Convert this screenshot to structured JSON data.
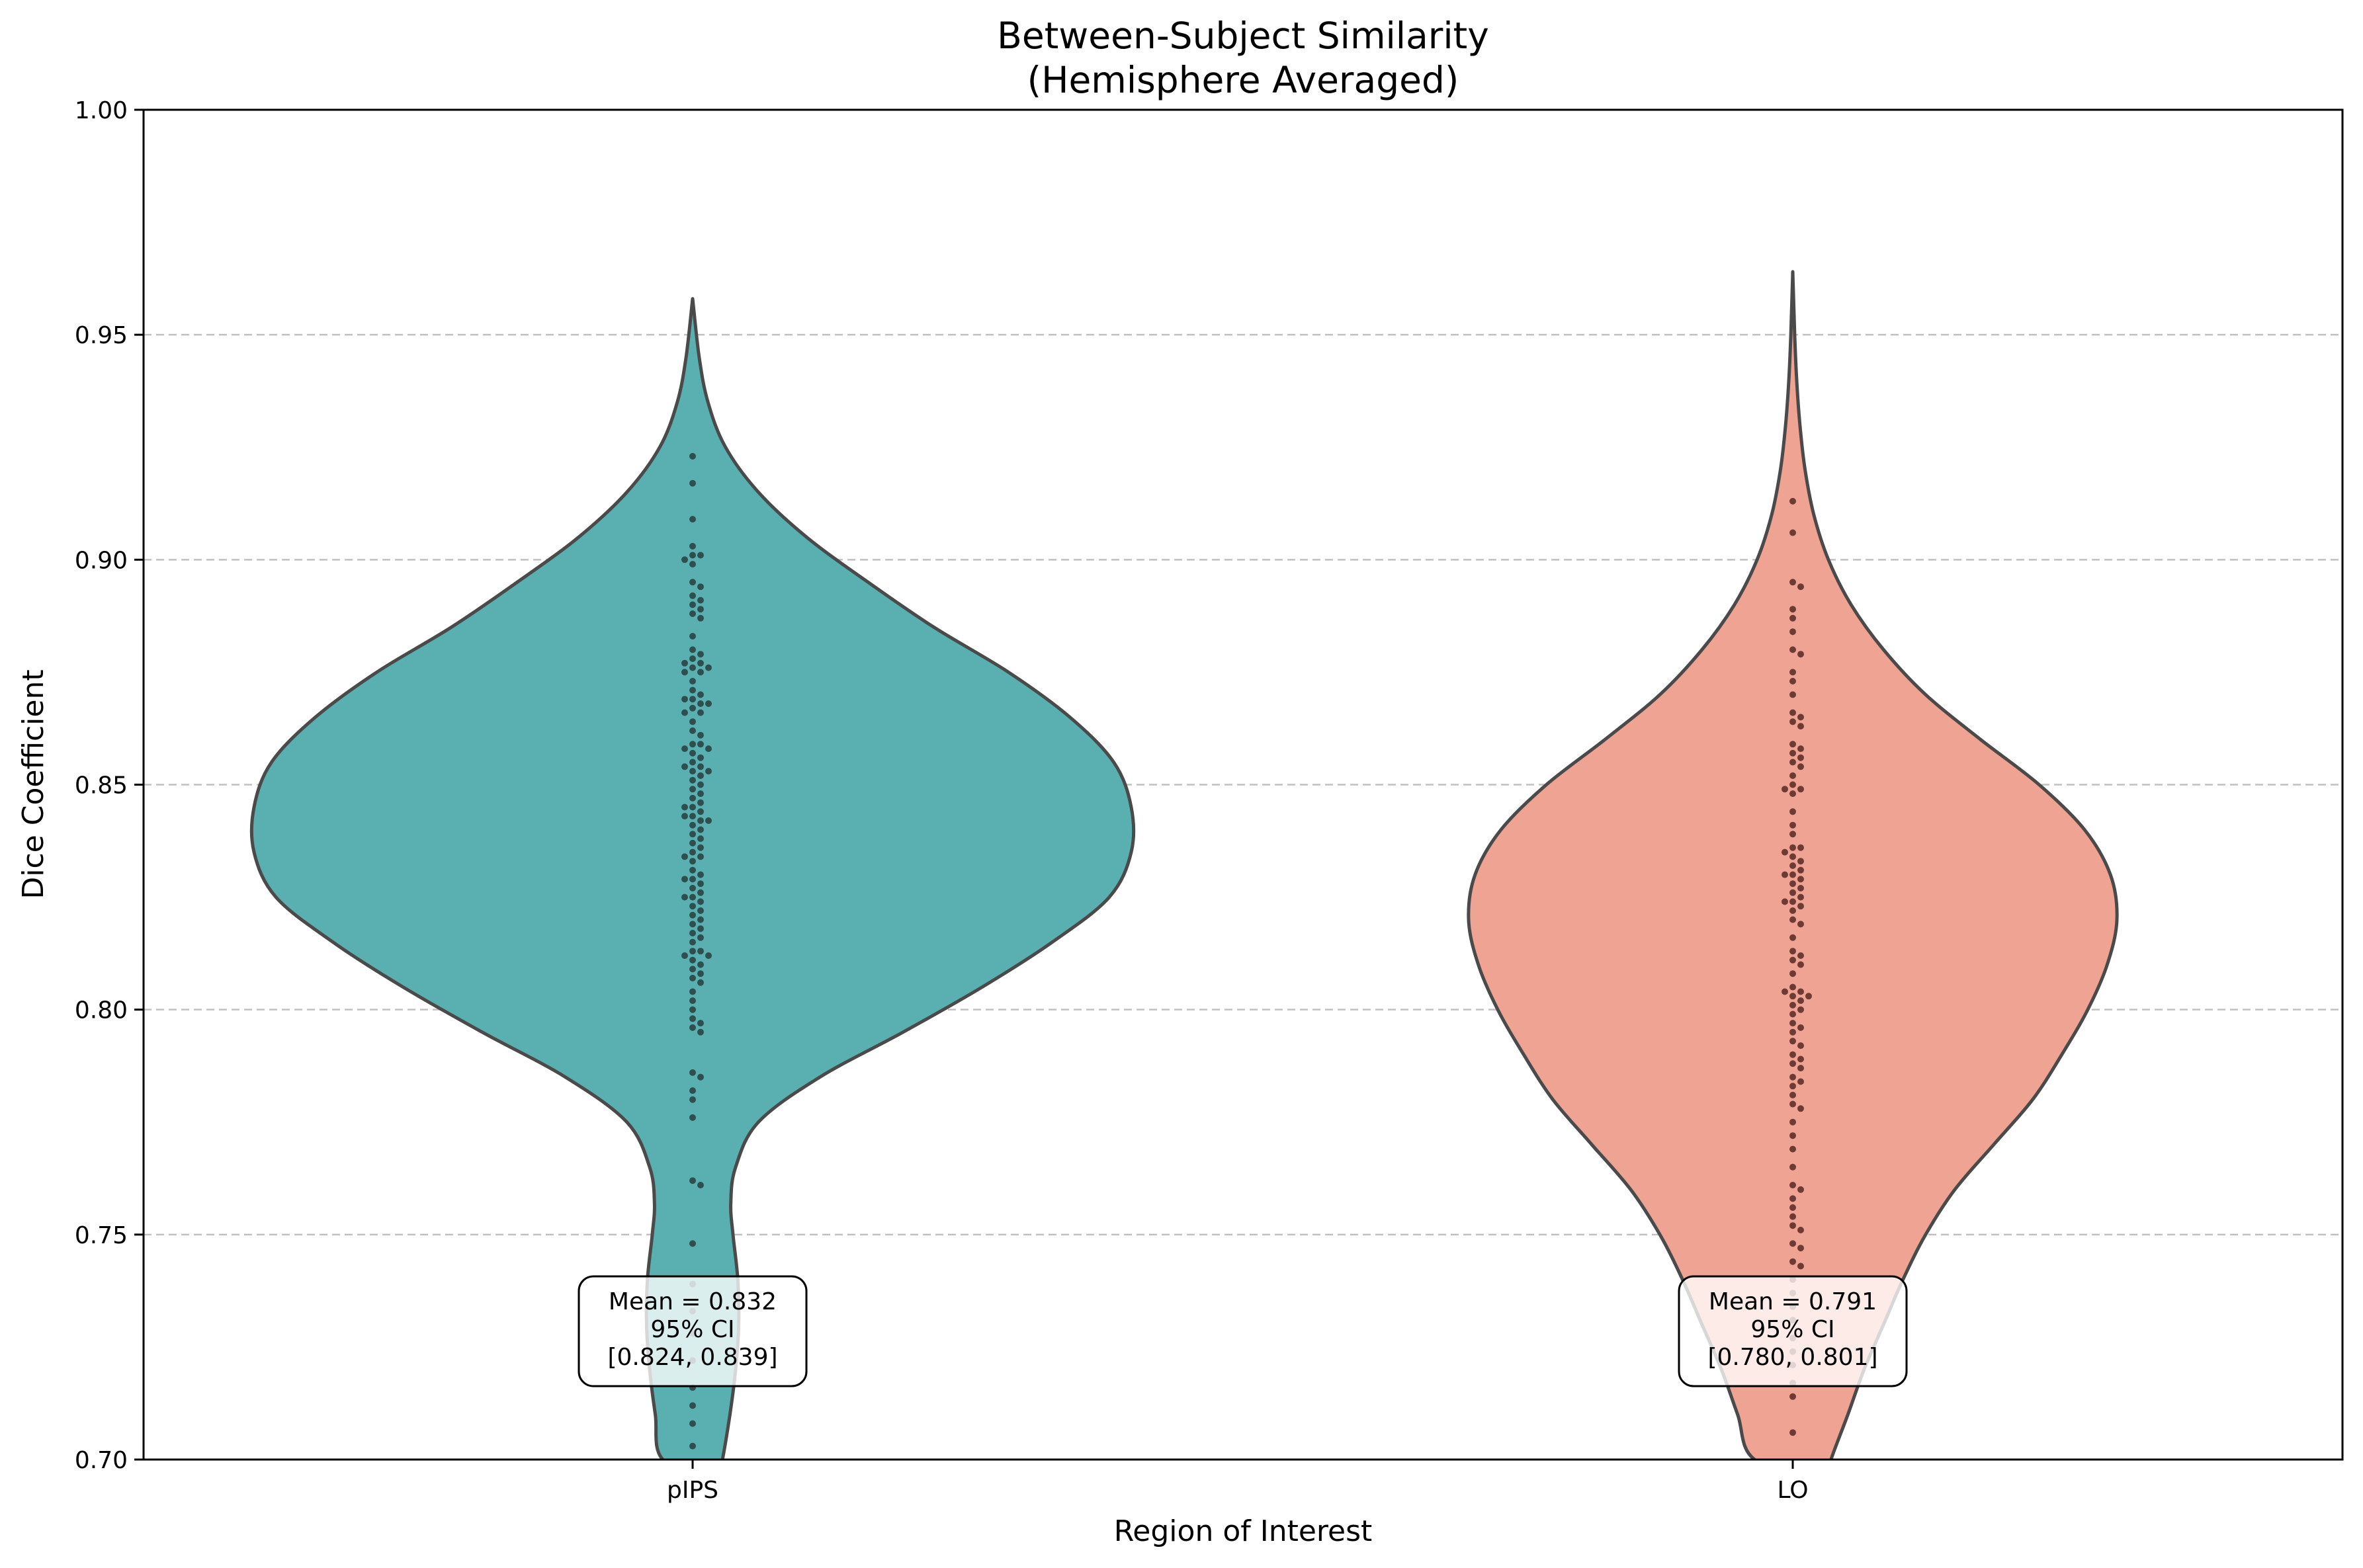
{
  "chart_data": {
    "type": "violin",
    "title": "Between-Subject Similarity",
    "subtitle": "(Hemisphere Averaged)",
    "xlabel": "Region of Interest",
    "ylabel": "Dice Coefficient",
    "ylim": [
      0.7,
      1.0
    ],
    "yticks": [
      "0.70",
      "0.75",
      "0.80",
      "0.85",
      "0.90",
      "0.95",
      "1.00"
    ],
    "grid": "horizontal dashed",
    "categories": [
      "pIPS",
      "LO"
    ],
    "colors": {
      "pIPS": "#5ab0b1",
      "LO": "#efa393",
      "outline": "#4a4a4a",
      "grid": "#c0c0c0"
    },
    "series": [
      {
        "category": "pIPS",
        "fill_color": "#5ab0b1",
        "point_color": "#2f4f4f",
        "max": 0.958,
        "mean": 0.832,
        "ci_label": "95% CI",
        "ci_text": "[0.824, 0.839]",
        "mean_text": "Mean = 0.832",
        "density_profile": [
          [
            0.695,
            0.055
          ],
          [
            0.7,
            0.068
          ],
          [
            0.71,
            0.085
          ],
          [
            0.72,
            0.098
          ],
          [
            0.73,
            0.105
          ],
          [
            0.74,
            0.103
          ],
          [
            0.75,
            0.092
          ],
          [
            0.757,
            0.087
          ],
          [
            0.765,
            0.098
          ],
          [
            0.775,
            0.15
          ],
          [
            0.785,
            0.29
          ],
          [
            0.795,
            0.48
          ],
          [
            0.805,
            0.66
          ],
          [
            0.815,
            0.82
          ],
          [
            0.825,
            0.95
          ],
          [
            0.835,
            1.0
          ],
          [
            0.845,
            1.0
          ],
          [
            0.855,
            0.96
          ],
          [
            0.865,
            0.86
          ],
          [
            0.875,
            0.72
          ],
          [
            0.885,
            0.55
          ],
          [
            0.895,
            0.4
          ],
          [
            0.905,
            0.26
          ],
          [
            0.915,
            0.15
          ],
          [
            0.925,
            0.075
          ],
          [
            0.935,
            0.035
          ],
          [
            0.945,
            0.015
          ],
          [
            0.958,
            0.0
          ]
        ],
        "points": [
          0.923,
          0.917,
          0.909,
          0.903,
          0.901,
          0.901,
          0.9,
          0.899,
          0.895,
          0.894,
          0.892,
          0.891,
          0.89,
          0.889,
          0.888,
          0.887,
          0.883,
          0.88,
          0.879,
          0.878,
          0.877,
          0.877,
          0.876,
          0.876,
          0.875,
          0.875,
          0.873,
          0.871,
          0.87,
          0.869,
          0.869,
          0.868,
          0.868,
          0.867,
          0.866,
          0.866,
          0.864,
          0.862,
          0.861,
          0.859,
          0.859,
          0.858,
          0.858,
          0.857,
          0.856,
          0.855,
          0.854,
          0.854,
          0.853,
          0.853,
          0.852,
          0.851,
          0.85,
          0.849,
          0.848,
          0.847,
          0.846,
          0.845,
          0.845,
          0.844,
          0.843,
          0.843,
          0.842,
          0.842,
          0.841,
          0.84,
          0.839,
          0.838,
          0.837,
          0.836,
          0.835,
          0.834,
          0.834,
          0.833,
          0.831,
          0.83,
          0.829,
          0.829,
          0.828,
          0.827,
          0.826,
          0.825,
          0.825,
          0.824,
          0.823,
          0.822,
          0.821,
          0.82,
          0.819,
          0.818,
          0.817,
          0.816,
          0.815,
          0.813,
          0.813,
          0.812,
          0.812,
          0.811,
          0.81,
          0.809,
          0.808,
          0.807,
          0.806,
          0.804,
          0.802,
          0.8,
          0.798,
          0.797,
          0.796,
          0.795,
          0.786,
          0.785,
          0.782,
          0.78,
          0.776,
          0.762,
          0.761,
          0.748,
          0.739,
          0.733,
          0.728,
          0.722,
          0.716,
          0.712,
          0.708,
          0.703
        ]
      },
      {
        "category": "LO",
        "fill_color": "#efa393",
        "point_color": "#6e3b34",
        "max": 0.964,
        "mean": 0.791,
        "ci_label": "95% CI",
        "ci_text": "[0.780, 0.801]",
        "mean_text": "Mean = 0.791",
        "density_profile": [
          [
            0.695,
            0.1
          ],
          [
            0.7,
            0.118
          ],
          [
            0.71,
            0.17
          ],
          [
            0.72,
            0.22
          ],
          [
            0.73,
            0.28
          ],
          [
            0.74,
            0.34
          ],
          [
            0.75,
            0.41
          ],
          [
            0.76,
            0.5
          ],
          [
            0.77,
            0.62
          ],
          [
            0.78,
            0.74
          ],
          [
            0.79,
            0.83
          ],
          [
            0.8,
            0.91
          ],
          [
            0.81,
            0.97
          ],
          [
            0.82,
            1.0
          ],
          [
            0.83,
            0.98
          ],
          [
            0.84,
            0.9
          ],
          [
            0.85,
            0.76
          ],
          [
            0.86,
            0.58
          ],
          [
            0.87,
            0.41
          ],
          [
            0.88,
            0.28
          ],
          [
            0.89,
            0.18
          ],
          [
            0.9,
            0.11
          ],
          [
            0.91,
            0.065
          ],
          [
            0.92,
            0.038
          ],
          [
            0.93,
            0.022
          ],
          [
            0.94,
            0.012
          ],
          [
            0.95,
            0.006
          ],
          [
            0.964,
            0.0
          ]
        ],
        "points": [
          0.913,
          0.906,
          0.895,
          0.894,
          0.889,
          0.887,
          0.884,
          0.88,
          0.879,
          0.875,
          0.873,
          0.87,
          0.866,
          0.865,
          0.864,
          0.863,
          0.859,
          0.858,
          0.857,
          0.856,
          0.855,
          0.854,
          0.852,
          0.85,
          0.849,
          0.849,
          0.848,
          0.844,
          0.841,
          0.839,
          0.836,
          0.836,
          0.835,
          0.834,
          0.833,
          0.832,
          0.831,
          0.83,
          0.83,
          0.829,
          0.828,
          0.827,
          0.826,
          0.825,
          0.824,
          0.824,
          0.823,
          0.822,
          0.82,
          0.819,
          0.816,
          0.813,
          0.812,
          0.811,
          0.81,
          0.808,
          0.805,
          0.804,
          0.804,
          0.803,
          0.803,
          0.802,
          0.801,
          0.8,
          0.799,
          0.797,
          0.796,
          0.795,
          0.793,
          0.792,
          0.79,
          0.789,
          0.788,
          0.787,
          0.785,
          0.784,
          0.783,
          0.781,
          0.779,
          0.778,
          0.775,
          0.772,
          0.769,
          0.765,
          0.761,
          0.76,
          0.758,
          0.756,
          0.754,
          0.752,
          0.751,
          0.748,
          0.747,
          0.744,
          0.743,
          0.74,
          0.737,
          0.734,
          0.731,
          0.727,
          0.724,
          0.721,
          0.717,
          0.714,
          0.706
        ]
      }
    ]
  }
}
